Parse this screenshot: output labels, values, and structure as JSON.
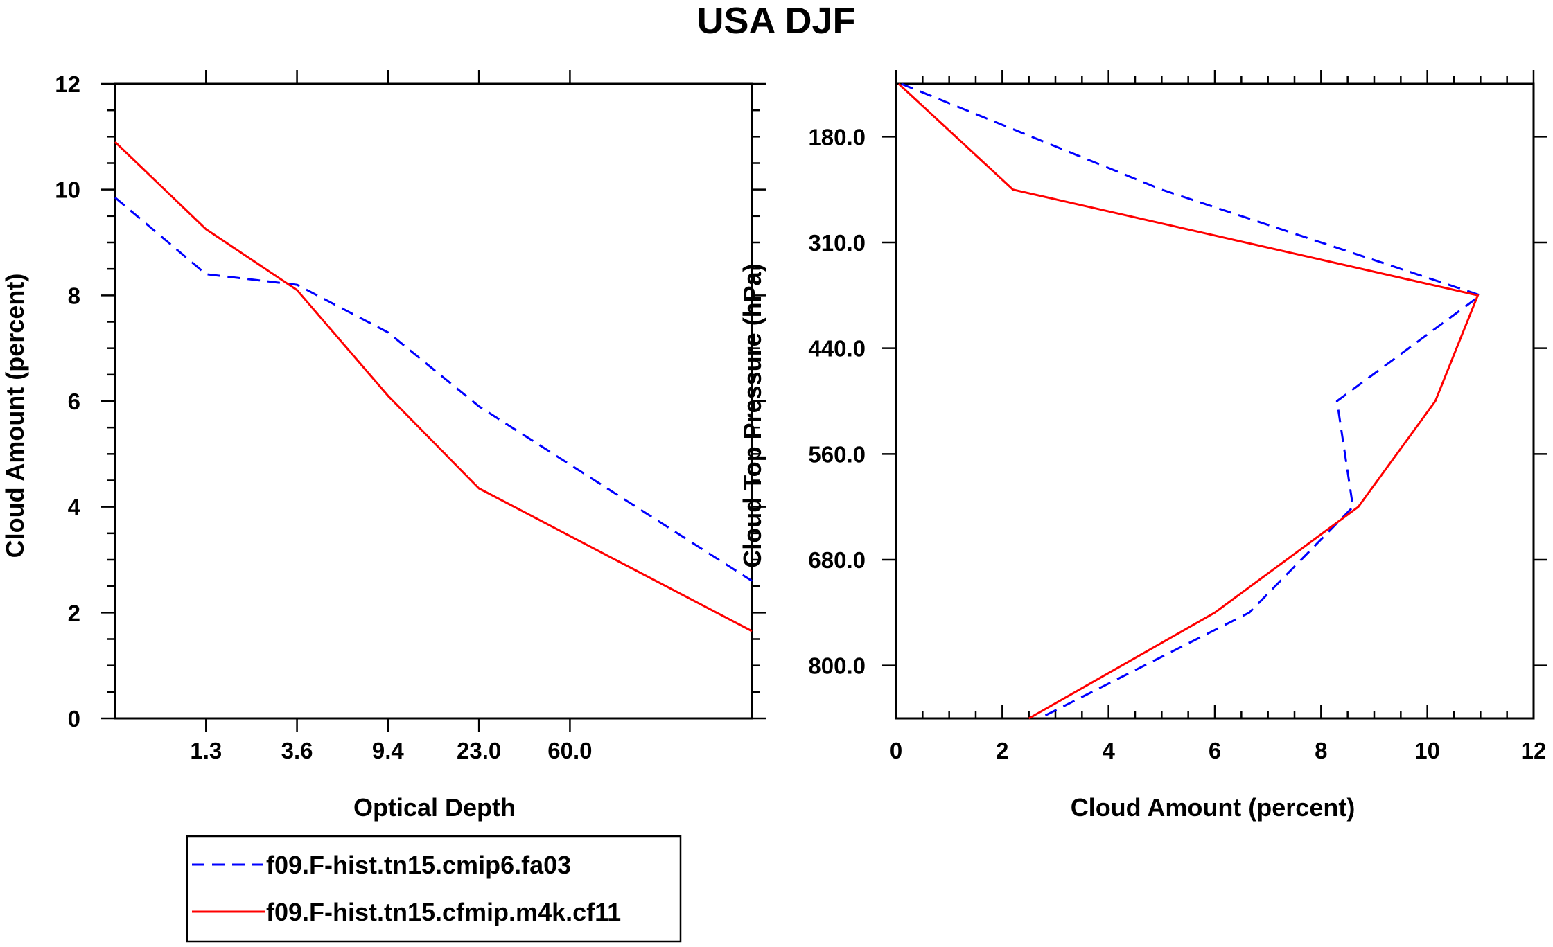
{
  "figure_title": "USA DJF",
  "colors": {
    "series1": "#0000ff",
    "series2": "#ff0000",
    "axis": "#000000"
  },
  "legend": {
    "entries": [
      {
        "label": "f09.F-hist.tn15.cmip6.fa03",
        "style": "dashed"
      },
      {
        "label": "f09.F-hist.tn15.cfmip.m4k.cf11",
        "style": "solid"
      }
    ]
  },
  "chart_data": [
    {
      "type": "line",
      "title": "",
      "xlabel": "Optical Depth",
      "ylabel": "Cloud Amount (percent)",
      "ylim": [
        0,
        12
      ],
      "y_ticks": [
        "0",
        "2",
        "4",
        "6",
        "8",
        "10",
        "12"
      ],
      "x_tick_labels": [
        "1.3",
        "3.6",
        "9.4",
        "23.0",
        "60.0"
      ],
      "x_bins": 7,
      "series": [
        {
          "name": "f09.F-hist.tn15.cmip6.fa03",
          "style": "dashed",
          "values": [
            9.85,
            8.4,
            8.2,
            7.3,
            5.9,
            2.6
          ]
        },
        {
          "name": "f09.F-hist.tn15.cfmip.m4k.cf11",
          "style": "solid",
          "values": [
            10.9,
            9.25,
            8.1,
            6.1,
            4.35,
            1.65
          ]
        }
      ]
    },
    {
      "type": "line",
      "title": "",
      "xlabel": "Cloud Amount (percent)",
      "ylabel": "Cloud Top Pressure (hPa)",
      "xlim": [
        0,
        12
      ],
      "x_ticks": [
        "0",
        "2",
        "4",
        "6",
        "8",
        "10",
        "12"
      ],
      "y_tick_labels": [
        "180.0",
        "310.0",
        "440.0",
        "560.0",
        "680.0",
        "800.0"
      ],
      "y_levels": 7,
      "series": [
        {
          "name": "f09.F-hist.tn15.cmip6.fa03",
          "style": "dashed",
          "values": [
            0.1,
            5.0,
            11.0,
            8.3,
            8.6,
            6.65,
            2.7
          ]
        },
        {
          "name": "f09.F-hist.tn15.cfmip.m4k.cf11",
          "style": "solid",
          "values": [
            0.05,
            2.2,
            10.95,
            10.15,
            8.7,
            6.0,
            2.5
          ]
        }
      ]
    }
  ]
}
